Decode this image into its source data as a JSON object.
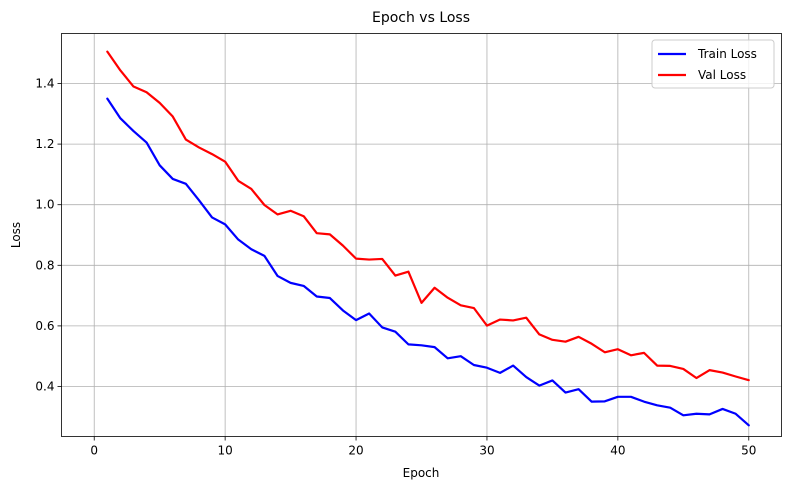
{
  "chart_data": {
    "type": "line",
    "title": "Epoch vs Loss",
    "xlabel": "Epoch",
    "ylabel": "Loss",
    "xlim": [
      -2.5,
      52.5
    ],
    "ylim": [
      0.235,
      1.565
    ],
    "xticks": [
      0,
      10,
      20,
      30,
      40,
      50
    ],
    "yticks": [
      0.4,
      0.6,
      0.8,
      1.0,
      1.2,
      1.4
    ],
    "xtick_labels": [
      "0",
      "10",
      "20",
      "30",
      "40",
      "50"
    ],
    "ytick_labels": [
      "0.4",
      "0.6",
      "0.8",
      "1.0",
      "1.2",
      "1.4"
    ],
    "grid": true,
    "legend_position": "top-right",
    "x": [
      1,
      2,
      3,
      4,
      5,
      6,
      7,
      8,
      9,
      10,
      11,
      12,
      13,
      14,
      15,
      16,
      17,
      18,
      19,
      20,
      21,
      22,
      23,
      24,
      25,
      26,
      27,
      28,
      29,
      30,
      31,
      32,
      33,
      34,
      35,
      36,
      37,
      38,
      39,
      40,
      41,
      42,
      43,
      44,
      45,
      46,
      47,
      48,
      49,
      50
    ],
    "series": [
      {
        "name": "Train Loss",
        "color": "#0000ff",
        "values": [
          1.35,
          1.285,
          1.243,
          1.205,
          1.13,
          1.085,
          1.069,
          1.015,
          0.958,
          0.935,
          0.885,
          0.853,
          0.831,
          0.765,
          0.742,
          0.732,
          0.697,
          0.692,
          0.651,
          0.619,
          0.641,
          0.595,
          0.581,
          0.539,
          0.536,
          0.53,
          0.493,
          0.5,
          0.471,
          0.462,
          0.445,
          0.469,
          0.431,
          0.403,
          0.42,
          0.38,
          0.391,
          0.35,
          0.351,
          0.366,
          0.366,
          0.35,
          0.338,
          0.33,
          0.305,
          0.31,
          0.308,
          0.326,
          0.31,
          0.272
        ]
      },
      {
        "name": "Val Loss",
        "color": "#ff0000",
        "values": [
          1.505,
          1.443,
          1.39,
          1.371,
          1.336,
          1.291,
          1.215,
          1.189,
          1.167,
          1.142,
          1.079,
          1.052,
          0.999,
          0.968,
          0.98,
          0.962,
          0.906,
          0.902,
          0.865,
          0.822,
          0.819,
          0.821,
          0.766,
          0.779,
          0.676,
          0.726,
          0.693,
          0.668,
          0.659,
          0.601,
          0.621,
          0.618,
          0.627,
          0.572,
          0.554,
          0.548,
          0.564,
          0.541,
          0.513,
          0.523,
          0.503,
          0.511,
          0.469,
          0.468,
          0.458,
          0.428,
          0.454,
          0.446,
          0.433,
          0.421
        ]
      }
    ]
  }
}
